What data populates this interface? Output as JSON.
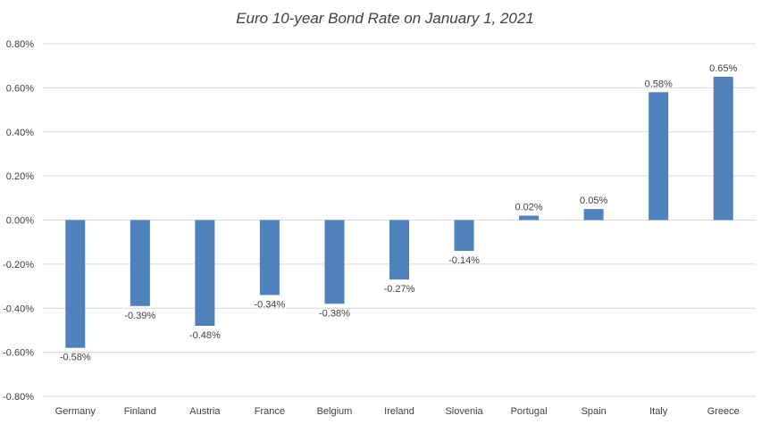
{
  "chart_data": {
    "type": "bar",
    "title": "Euro 10-year Bond Rate on January 1, 2021",
    "xlabel": "",
    "ylabel": "",
    "categories": [
      "Germany",
      "Finland",
      "Austria",
      "France",
      "Belgium",
      "Ireland",
      "Slovenia",
      "Portugal",
      "Spain",
      "Italy",
      "Greece"
    ],
    "values": [
      -0.58,
      -0.39,
      -0.48,
      -0.34,
      -0.38,
      -0.27,
      -0.14,
      0.02,
      0.05,
      0.58,
      0.65
    ],
    "data_labels": [
      "-0.58%",
      "-0.39%",
      "-0.48%",
      "-0.34%",
      "-0.38%",
      "-0.27%",
      "-0.14%",
      "0.02%",
      "0.05%",
      "0.58%",
      "0.65%"
    ],
    "ylim": [
      -0.8,
      0.8
    ],
    "y_ticks": [
      0.8,
      0.6,
      0.4,
      0.2,
      0.0,
      -0.2,
      -0.4,
      -0.6,
      -0.8
    ],
    "y_tick_labels": [
      "0.80%",
      "0.60%",
      "0.40%",
      "0.20%",
      "0.00%",
      "-0.20%",
      "-0.40%",
      "-0.60%",
      "-0.80%"
    ],
    "grid": true,
    "legend": "none",
    "bar_color": "#4f81bd"
  }
}
